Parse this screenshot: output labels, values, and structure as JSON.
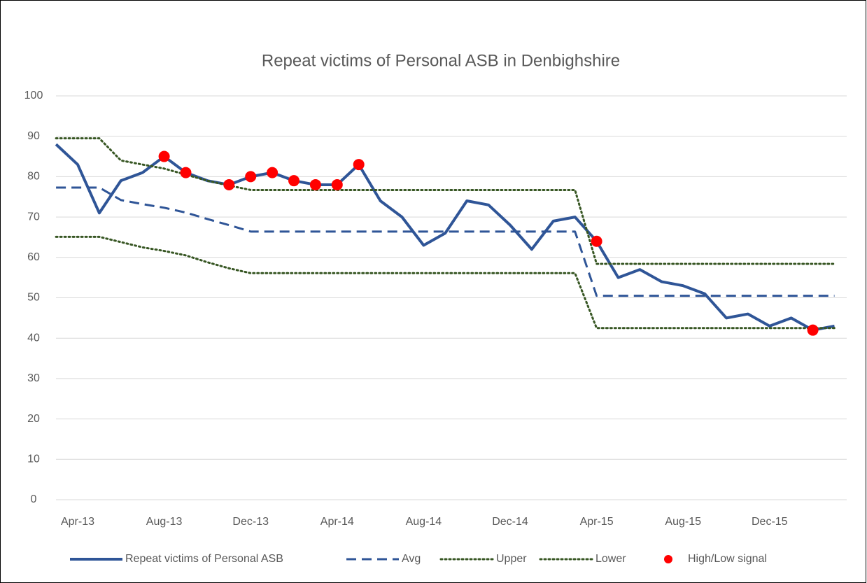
{
  "chart_data": {
    "type": "line",
    "title": "Repeat victims of Personal ASB in Denbighshire",
    "categories": [
      null,
      "Apr-13",
      null,
      null,
      null,
      "Aug-13",
      null,
      null,
      null,
      "Dec-13",
      null,
      null,
      null,
      "Apr-14",
      null,
      null,
      null,
      "Aug-14",
      null,
      null,
      null,
      "Dec-14",
      null,
      null,
      null,
      "Apr-15",
      null,
      null,
      null,
      "Aug-15",
      null,
      null,
      null,
      "Dec-15",
      null,
      null,
      null
    ],
    "series": [
      {
        "name": "Repeat victims of Personal ASB",
        "color": "#2f5597",
        "style": "solid",
        "values": [
          88,
          83,
          71,
          79,
          81,
          85,
          81,
          79,
          78,
          80,
          81,
          79,
          78,
          78,
          83,
          74,
          70,
          63,
          66,
          74,
          73,
          68,
          62,
          69,
          70,
          64,
          55,
          57,
          54,
          53,
          51,
          45,
          46,
          43,
          45,
          42,
          43
        ]
      },
      {
        "name": "Avg",
        "color": "#2f5597",
        "style": "dash",
        "values": [
          77.3,
          77.3,
          77.3,
          74.2,
          73.2,
          72.3,
          71.1,
          69.5,
          68.0,
          66.4,
          66.4,
          66.4,
          66.4,
          66.4,
          66.4,
          66.4,
          66.4,
          66.4,
          66.4,
          66.4,
          66.4,
          66.4,
          66.4,
          66.4,
          66.4,
          50.5,
          50.5,
          50.5,
          50.5,
          50.5,
          50.5,
          50.5,
          50.5,
          50.5,
          50.5,
          50.5,
          50.5
        ]
      },
      {
        "name": "Upper",
        "color": "#375623",
        "style": "dot",
        "values": [
          89.5,
          89.5,
          89.5,
          84,
          83,
          82,
          80.5,
          79,
          77.8,
          76.7,
          76.7,
          76.7,
          76.7,
          76.7,
          76.7,
          76.7,
          76.7,
          76.7,
          76.7,
          76.7,
          76.7,
          76.7,
          76.7,
          76.7,
          76.7,
          58.4,
          58.4,
          58.4,
          58.4,
          58.4,
          58.4,
          58.4,
          58.4,
          58.4,
          58.4,
          58.4,
          58.4
        ]
      },
      {
        "name": "Lower",
        "color": "#375623",
        "style": "dot",
        "values": [
          65.1,
          65.1,
          65.1,
          63.8,
          62.5,
          61.6,
          60.5,
          58.8,
          57.3,
          56.1,
          56.1,
          56.1,
          56.1,
          56.1,
          56.1,
          56.1,
          56.1,
          56.1,
          56.1,
          56.1,
          56.1,
          56.1,
          56.1,
          56.1,
          56.1,
          42.5,
          42.5,
          42.5,
          42.5,
          42.5,
          42.5,
          42.5,
          42.5,
          42.5,
          42.5,
          42.5,
          42.5
        ]
      },
      {
        "name": "High/Low signal",
        "color": "#ff0000",
        "style": "marker",
        "values": [
          null,
          null,
          null,
          null,
          null,
          85,
          81,
          null,
          78,
          80,
          81,
          79,
          78,
          78,
          83,
          null,
          null,
          null,
          null,
          null,
          null,
          null,
          null,
          null,
          null,
          64,
          null,
          null,
          null,
          null,
          null,
          null,
          null,
          null,
          null,
          42,
          null
        ]
      }
    ],
    "ylim": [
      0,
      100
    ],
    "yticks": [
      0,
      10,
      20,
      30,
      40,
      50,
      60,
      70,
      80,
      90,
      100
    ],
    "grid": true
  }
}
